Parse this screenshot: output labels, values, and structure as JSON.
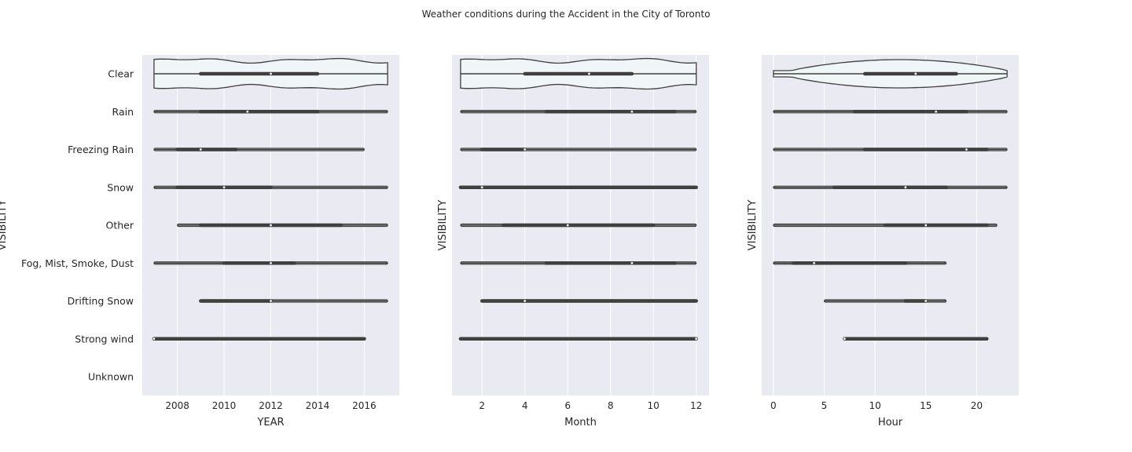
{
  "figure": {
    "title": "Weather conditions during the Accident in the City of Toronto"
  },
  "chart_data": [
    {
      "type": "violin",
      "xlabel": "YEAR",
      "ylabel": "VISIBILITY",
      "xlim": [
        2006.5,
        2017.5
      ],
      "xticks": [
        2008,
        2010,
        2012,
        2014,
        2016
      ],
      "categories": [
        "Clear",
        "Rain",
        "Freezing Rain",
        "Snow",
        "Other",
        "Fog, Mist, Smoke, Dust",
        "Drifting Snow",
        "Strong wind",
        "Unknown"
      ],
      "distributions": [
        {
          "category": "Clear",
          "min": 2007,
          "q1": 2009,
          "median": 2012,
          "q3": 2014,
          "max": 2017
        },
        {
          "category": "Rain",
          "min": 2007,
          "q1": 2009,
          "median": 2011,
          "q3": 2014,
          "max": 2017
        },
        {
          "category": "Freezing Rain",
          "min": 2007,
          "q1": 2008,
          "median": 2009,
          "q3": 2010.5,
          "max": 2016
        },
        {
          "category": "Snow",
          "min": 2007,
          "q1": 2008,
          "median": 2010,
          "q3": 2012,
          "max": 2017
        },
        {
          "category": "Other",
          "min": 2008,
          "q1": 2009,
          "median": 2012,
          "q3": 2015,
          "max": 2017
        },
        {
          "category": "Fog, Mist, Smoke, Dust",
          "min": 2007,
          "q1": 2010,
          "median": 2012,
          "q3": 2013,
          "max": 2017
        },
        {
          "category": "Drifting Snow",
          "min": 2009,
          "q1": 2009,
          "median": 2012,
          "q3": 2012,
          "max": 2017
        },
        {
          "category": "Strong wind",
          "min": 2007,
          "q1": 2007,
          "median": 2007,
          "q3": 2016,
          "max": 2016
        },
        {
          "category": "Unknown"
        }
      ]
    },
    {
      "type": "violin",
      "xlabel": "Month",
      "ylabel": "VISIBILITY",
      "xlim": [
        0.6,
        12.6
      ],
      "xticks": [
        2,
        4,
        6,
        8,
        10,
        12
      ],
      "categories": [
        "Clear",
        "Rain",
        "Freezing Rain",
        "Snow",
        "Other",
        "Fog, Mist, Smoke, Dust",
        "Drifting Snow",
        "Strong wind",
        "Unknown"
      ],
      "distributions": [
        {
          "category": "Clear",
          "min": 1,
          "q1": 4,
          "median": 7,
          "q3": 9,
          "max": 12
        },
        {
          "category": "Rain",
          "min": 1,
          "q1": 5,
          "median": 9,
          "q3": 11,
          "max": 12
        },
        {
          "category": "Freezing Rain",
          "min": 1,
          "q1": 2,
          "median": 4,
          "q3": 4,
          "max": 12
        },
        {
          "category": "Snow",
          "min": 1,
          "q1": 1,
          "median": 2,
          "q3": 12,
          "max": 12
        },
        {
          "category": "Other",
          "min": 1,
          "q1": 3,
          "median": 6,
          "q3": 10,
          "max": 12
        },
        {
          "category": "Fog, Mist, Smoke, Dust",
          "min": 1,
          "q1": 5,
          "median": 9,
          "q3": 11,
          "max": 12
        },
        {
          "category": "Drifting Snow",
          "min": 2,
          "q1": 2,
          "median": 4,
          "q3": 12,
          "max": 12
        },
        {
          "category": "Strong wind",
          "min": 1,
          "q1": 1,
          "median": 12,
          "q3": 12,
          "max": 12
        },
        {
          "category": "Unknown"
        }
      ]
    },
    {
      "type": "violin",
      "xlabel": "Hour",
      "ylabel": "VISIBILITY",
      "xlim": [
        -1.15,
        24.15
      ],
      "xticks": [
        0,
        5,
        10,
        15,
        20
      ],
      "categories": [
        "Clear",
        "Rain",
        "Freezing Rain",
        "Snow",
        "Other",
        "Fog, Mist, Smoke, Dust",
        "Drifting Snow",
        "Strong wind",
        "Unknown"
      ],
      "distributions": [
        {
          "category": "Clear",
          "min": 0,
          "q1": 9,
          "median": 14,
          "q3": 18,
          "max": 23
        },
        {
          "category": "Rain",
          "min": 0,
          "q1": 8,
          "median": 16,
          "q3": 19,
          "max": 23
        },
        {
          "category": "Freezing Rain",
          "min": 0,
          "q1": 9,
          "median": 19,
          "q3": 21,
          "max": 23
        },
        {
          "category": "Snow",
          "min": 0,
          "q1": 6,
          "median": 13,
          "q3": 17,
          "max": 23
        },
        {
          "category": "Other",
          "min": 0,
          "q1": 11,
          "median": 15,
          "q3": 21,
          "max": 22
        },
        {
          "category": "Fog, Mist, Smoke, Dust",
          "min": 0,
          "q1": 2,
          "median": 4,
          "q3": 13,
          "max": 17
        },
        {
          "category": "Drifting Snow",
          "min": 5,
          "q1": 13,
          "median": 15,
          "q3": 15,
          "max": 17
        },
        {
          "category": "Strong wind",
          "min": 7,
          "q1": 7,
          "median": 7,
          "q3": 21,
          "max": 21
        },
        {
          "category": "Unknown"
        }
      ]
    }
  ],
  "style": {
    "panel_bg": "#eaeaf2",
    "grid_color": "#ffffff",
    "violin_fill": "#f0f6f7",
    "line_color": "#3f3f3f",
    "text_color": "#262626"
  }
}
